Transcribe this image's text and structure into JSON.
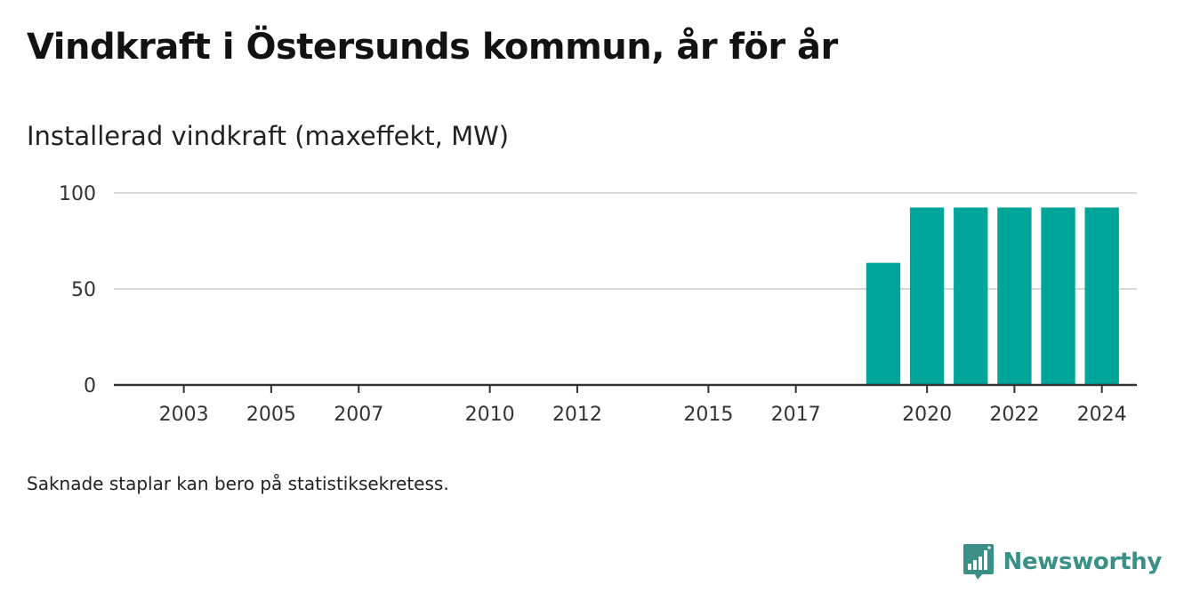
{
  "title": "Vindkraft i Östersunds kommun, år för år",
  "subtitle": "Installerad vindkraft (maxeffekt, MW)",
  "note": "Saknade staplar kan bero på statistiksekretess.",
  "brand": {
    "name": "Newsworthy",
    "icon": "bar-chart-speech-bubble-icon",
    "color": "#3a8f86"
  },
  "chart_data": {
    "type": "bar",
    "title": "",
    "xlabel": "",
    "ylabel": "Installerad vindkraft (maxeffekt, MW)",
    "bar_color": "#00a59a",
    "categories": [
      2002,
      2003,
      2004,
      2005,
      2006,
      2007,
      2008,
      2009,
      2010,
      2011,
      2012,
      2013,
      2014,
      2015,
      2016,
      2017,
      2018,
      2019,
      2020,
      2021,
      2022,
      2023,
      2024
    ],
    "values": [
      0,
      0,
      0,
      0,
      0,
      0,
      0,
      0,
      0,
      0,
      0,
      0,
      0,
      0,
      0,
      0,
      0,
      63.6,
      92.4,
      92.4,
      92.4,
      92.4,
      92.4
    ],
    "x_tick_labels": [
      "2003",
      "2005",
      "2007",
      "2010",
      "2012",
      "2015",
      "2017",
      "2020",
      "2022",
      "2024"
    ],
    "y_ticks": [
      0,
      50,
      100
    ],
    "y_tick_labels": [
      "0",
      "50",
      "100"
    ],
    "ylim": [
      0,
      100
    ],
    "grid": true
  }
}
